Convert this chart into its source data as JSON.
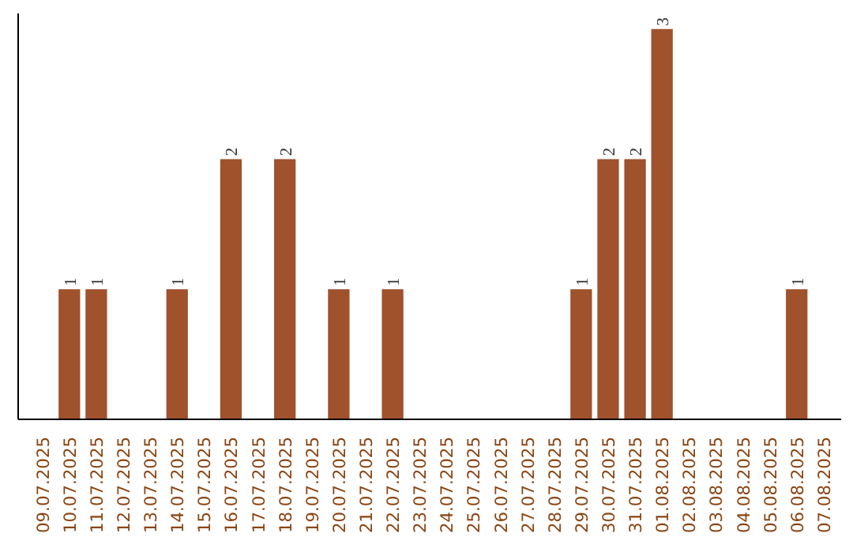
{
  "chart_data": {
    "type": "bar",
    "categories": [
      "09.07.2025",
      "10.07.2025",
      "11.07.2025",
      "12.07.2025",
      "13.07.2025",
      "14.07.2025",
      "15.07.2025",
      "16.07.2025",
      "17.07.2025",
      "18.07.2025",
      "19.07.2025",
      "20.07.2025",
      "21.07.2025",
      "22.07.2025",
      "23.07.2025",
      "24.07.2025",
      "25.07.2025",
      "26.07.2025",
      "27.07.2025",
      "28.07.2025",
      "29.07.2025",
      "30.07.2025",
      "31.07.2025",
      "01.08.2025",
      "02.08.2025",
      "03.08.2025",
      "04.08.2025",
      "05.08.2025",
      "06.08.2025",
      "07.08.2025"
    ],
    "values": [
      0,
      1,
      1,
      0,
      0,
      1,
      0,
      2,
      0,
      2,
      0,
      1,
      0,
      1,
      0,
      0,
      0,
      0,
      0,
      0,
      1,
      2,
      2,
      3,
      0,
      0,
      0,
      0,
      1,
      0
    ],
    "value_labels": [
      null,
      "1",
      "1",
      null,
      null,
      "1",
      null,
      "2",
      null,
      "2",
      null,
      "1",
      null,
      "1",
      null,
      null,
      null,
      null,
      null,
      null,
      "1",
      "2",
      "2",
      "3",
      null,
      null,
      null,
      null,
      "1",
      null
    ],
    "color": "#a0522d",
    "grid": false,
    "tick_labels": "x"
  }
}
